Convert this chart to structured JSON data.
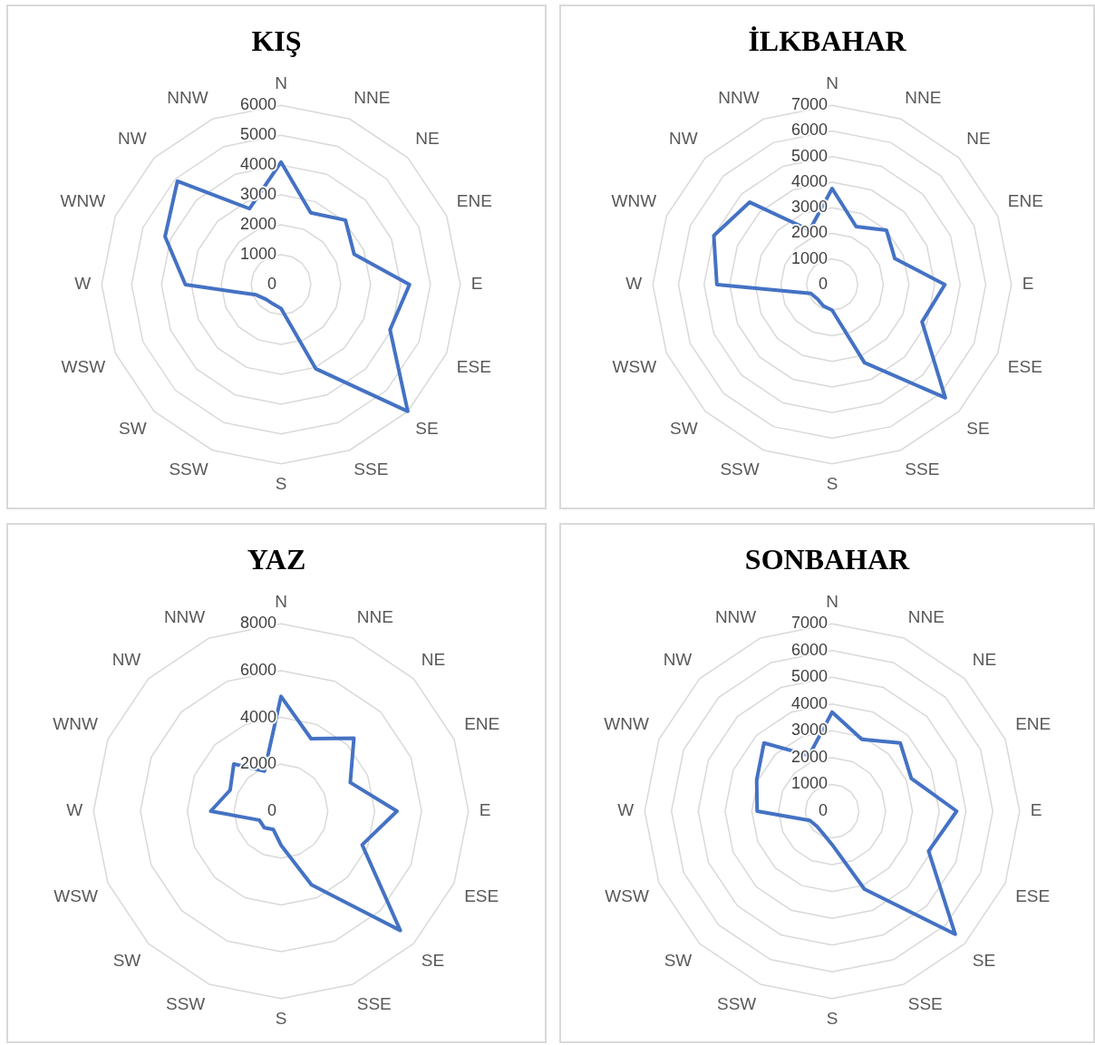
{
  "chart_data": [
    {
      "type": "radar",
      "title": "KIŞ",
      "categories": [
        "N",
        "NNE",
        "NE",
        "ENE",
        "E",
        "ESE",
        "SE",
        "SSE",
        "S",
        "SSW",
        "SW",
        "WSW",
        "W",
        "WNW",
        "NW",
        "NNW"
      ],
      "ylim": [
        0,
        6000
      ],
      "yticks": [
        0,
        1000,
        2000,
        3000,
        4000,
        5000,
        6000
      ],
      "grid": true,
      "marker": "none",
      "series": [
        {
          "color": "#4472c4",
          "values": [
            4100,
            2600,
            3050,
            2650,
            4300,
            3950,
            6000,
            3050,
            800,
            700,
            700,
            900,
            3200,
            4200,
            4900,
            2750
          ]
        }
      ]
    },
    {
      "type": "radar",
      "title": "İLKBAHAR",
      "categories": [
        "N",
        "NNE",
        "NE",
        "ENE",
        "E",
        "ESE",
        "SE",
        "SSE",
        "S",
        "SSW",
        "SW",
        "WSW",
        "W",
        "WNW",
        "NW",
        "NNW"
      ],
      "ylim": [
        0,
        7000
      ],
      "yticks": [
        0,
        1000,
        2000,
        3000,
        4000,
        5000,
        6000,
        7000
      ],
      "grid": true,
      "marker": "none",
      "series": [
        {
          "color": "#4472c4",
          "values": [
            3750,
            2450,
            3000,
            2650,
            4400,
            3800,
            6250,
            3300,
            1000,
            900,
            800,
            900,
            4500,
            5000,
            4550,
            2300
          ]
        }
      ]
    },
    {
      "type": "radar",
      "title": "YAZ",
      "categories": [
        "N",
        "NNE",
        "NE",
        "ENE",
        "E",
        "ESE",
        "SE",
        "SSE",
        "S",
        "SSW",
        "SW",
        "WSW",
        "W",
        "WNW",
        "NW",
        "NNW"
      ],
      "ylim": [
        0,
        8000
      ],
      "yticks": [
        0,
        2000,
        4000,
        6000,
        8000
      ],
      "grid": true,
      "marker": "none",
      "series": [
        {
          "color": "#4472c4",
          "values": [
            4900,
            3350,
            4400,
            3200,
            4950,
            3750,
            7200,
            3400,
            1450,
            850,
            1000,
            1000,
            3000,
            2350,
            2850,
            1850
          ]
        }
      ]
    },
    {
      "type": "radar",
      "title": "SONBAHAR",
      "categories": [
        "N",
        "NNE",
        "NE",
        "ENE",
        "E",
        "ESE",
        "SE",
        "SSE",
        "S",
        "SSW",
        "SW",
        "WSW",
        "W",
        "WNW",
        "NW",
        "NNW"
      ],
      "ylim": [
        0,
        7000
      ],
      "yticks": [
        0,
        1000,
        2000,
        3000,
        4000,
        5000,
        6000,
        7000
      ],
      "grid": true,
      "marker": "none",
      "series": [
        {
          "color": "#4472c4",
          "values": [
            3700,
            2900,
            3600,
            3200,
            4650,
            3900,
            6500,
            3150,
            1250,
            900,
            800,
            900,
            2800,
            3050,
            3600,
            2250
          ]
        }
      ]
    }
  ]
}
